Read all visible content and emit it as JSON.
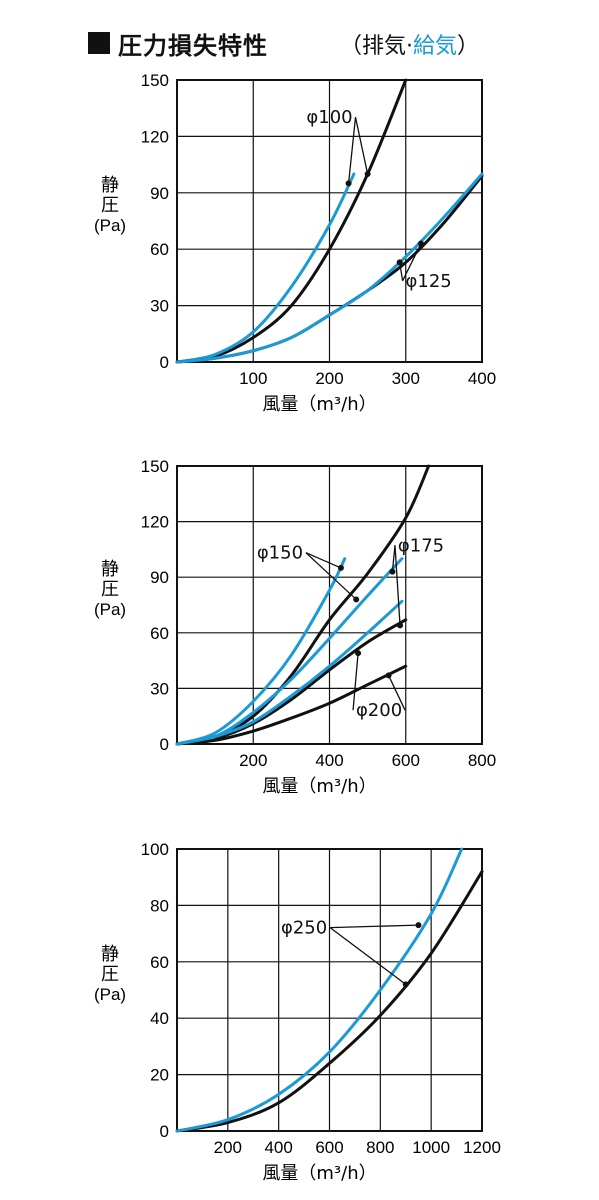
{
  "header": {
    "title": "圧力損失特性",
    "subtitle_open": "（",
    "subtitle_exhaust": "排気",
    "subtitle_sep": "·",
    "subtitle_supply": "給気",
    "subtitle_close": "）"
  },
  "colors": {
    "exhaust": "#111111",
    "supply": "#1a9ad6",
    "grid": "#111111",
    "title_mark": "#111111"
  },
  "chart_data": [
    {
      "type": "line",
      "xlabel": "風量（m³/h）",
      "ylabel": [
        "静",
        "圧",
        "(Pa)"
      ],
      "xlim": [
        0,
        400
      ],
      "ylim": [
        0,
        150
      ],
      "xticks": [
        100,
        200,
        300,
        400
      ],
      "yticks": [
        0,
        30,
        60,
        90,
        120,
        150
      ],
      "grid": true,
      "series": [
        {
          "name": "φ100",
          "kind": "exhaust",
          "x": [
            0,
            50,
            100,
            150,
            200,
            250,
            300
          ],
          "y": [
            0,
            3,
            13,
            30,
            60,
            100,
            150
          ]
        },
        {
          "name": "φ100",
          "kind": "supply",
          "x": [
            0,
            50,
            100,
            150,
            200,
            232
          ],
          "y": [
            0,
            4,
            16,
            40,
            73,
            100
          ]
        },
        {
          "name": "φ125",
          "kind": "exhaust",
          "x": [
            0,
            50,
            100,
            150,
            200,
            250,
            300,
            350,
            400
          ],
          "y": [
            0,
            2,
            6,
            13,
            25,
            38,
            53,
            74,
            99
          ]
        },
        {
          "name": "φ125",
          "kind": "supply",
          "x": [
            0,
            50,
            100,
            150,
            200,
            250,
            300,
            350,
            400
          ],
          "y": [
            0,
            2,
            6,
            13,
            25,
            38,
            56,
            77,
            100
          ]
        }
      ],
      "annotations": [
        {
          "text": "φ100",
          "x": 200,
          "y": 127,
          "targets": [
            [
              225,
              95
            ],
            [
              250,
              100
            ]
          ]
        },
        {
          "text": "φ125",
          "x": 330,
          "y": 40,
          "targets": [
            [
              292,
              53
            ],
            [
              320,
              63
            ]
          ]
        }
      ]
    },
    {
      "type": "line",
      "xlabel": "風量（m³/h）",
      "ylabel": [
        "静",
        "圧",
        "(Pa)"
      ],
      "xlim": [
        0,
        800
      ],
      "ylim": [
        0,
        150
      ],
      "xticks": [
        200,
        400,
        600,
        800
      ],
      "yticks": [
        0,
        30,
        60,
        90,
        120,
        150
      ],
      "grid": true,
      "series": [
        {
          "name": "φ150",
          "kind": "exhaust",
          "x": [
            0,
            100,
            200,
            300,
            400,
            500,
            600,
            660
          ],
          "y": [
            0,
            4,
            15,
            37,
            67,
            92,
            122,
            150
          ]
        },
        {
          "name": "φ150",
          "kind": "supply",
          "x": [
            0,
            100,
            200,
            300,
            400,
            440
          ],
          "y": [
            0,
            6,
            23,
            48,
            83,
            100
          ]
        },
        {
          "name": "φ175",
          "kind": "exhaust",
          "x": [
            0,
            100,
            200,
            300,
            400,
            500,
            600
          ],
          "y": [
            0,
            3,
            11,
            24,
            40,
            55,
            67
          ]
        },
        {
          "name": "φ175",
          "kind": "supply",
          "x": [
            0,
            100,
            200,
            300,
            400,
            500,
            590
          ],
          "y": [
            0,
            4,
            17,
            35,
            57,
            80,
            100
          ]
        },
        {
          "name": "φ200",
          "kind": "exhaust",
          "x": [
            0,
            100,
            200,
            300,
            400,
            500,
            600
          ],
          "y": [
            0,
            2,
            7,
            14,
            22,
            32,
            42
          ]
        },
        {
          "name": "φ200",
          "kind": "supply",
          "x": [
            0,
            100,
            200,
            300,
            400,
            500,
            590
          ],
          "y": [
            0,
            4,
            12,
            26,
            42,
            60,
            77
          ]
        }
      ],
      "annotations": [
        {
          "text": "φ150",
          "x": 270,
          "y": 100,
          "targets": [
            [
              430,
              95
            ],
            [
              470,
              78
            ]
          ]
        },
        {
          "text": "φ175",
          "x": 640,
          "y": 104,
          "targets": [
            [
              565,
              93
            ],
            [
              585,
              64
            ]
          ]
        },
        {
          "text": "φ200",
          "x": 530,
          "y": 15,
          "targets": [
            [
              475,
              49
            ],
            [
              555,
              37
            ]
          ]
        }
      ]
    },
    {
      "type": "line",
      "xlabel": "風量（m³/h）",
      "ylabel": [
        "静",
        "圧",
        "(Pa)"
      ],
      "xlim": [
        0,
        1200
      ],
      "ylim": [
        0,
        100
      ],
      "xticks": [
        200,
        400,
        600,
        800,
        1000,
        1200
      ],
      "yticks": [
        0,
        20,
        40,
        60,
        80,
        100
      ],
      "grid": true,
      "series": [
        {
          "name": "φ250",
          "kind": "exhaust",
          "x": [
            0,
            200,
            400,
            600,
            800,
            1000,
            1200
          ],
          "y": [
            0,
            3,
            10,
            24,
            41,
            63,
            92
          ]
        },
        {
          "name": "φ250",
          "kind": "supply",
          "x": [
            0,
            200,
            400,
            600,
            800,
            1000,
            1120
          ],
          "y": [
            0,
            4,
            13,
            28,
            50,
            77,
            100
          ]
        }
      ],
      "annotations": [
        {
          "text": "φ250",
          "x": 500,
          "y": 70,
          "targets": [
            [
              950,
              73
            ],
            [
              900,
              52
            ]
          ]
        }
      ]
    }
  ]
}
